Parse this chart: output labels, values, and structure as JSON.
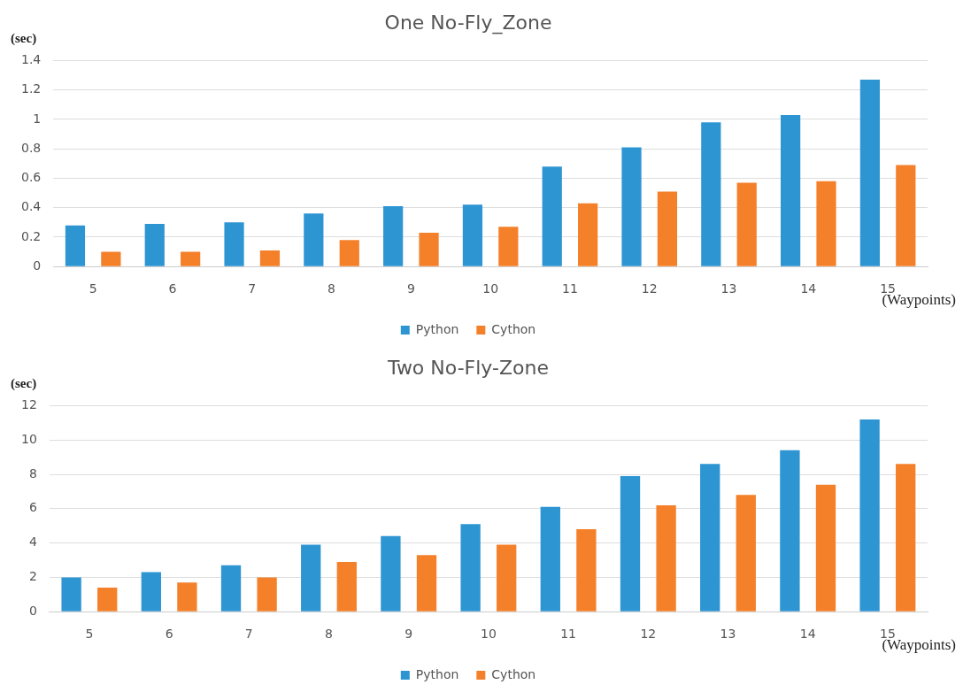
{
  "chart_data": [
    {
      "type": "bar",
      "title": "One No-Fly_Zone",
      "ylabel": "(sec)",
      "xlabel": "(Waypoints)",
      "categories": [
        "5",
        "6",
        "7",
        "8",
        "9",
        "10",
        "11",
        "12",
        "13",
        "14",
        "15"
      ],
      "series": [
        {
          "name": "Python",
          "color": "#2e95d3",
          "values": [
            0.28,
            0.29,
            0.3,
            0.36,
            0.41,
            0.42,
            0.68,
            0.81,
            0.98,
            1.03,
            1.27
          ]
        },
        {
          "name": "Cython",
          "color": "#f5802a",
          "values": [
            0.1,
            0.1,
            0.11,
            0.18,
            0.23,
            0.27,
            0.43,
            0.51,
            0.57,
            0.58,
            0.69
          ]
        }
      ],
      "ylim": [
        0,
        1.4
      ],
      "yticks": [
        0,
        0.2,
        0.4,
        0.6,
        0.8,
        1,
        1.2,
        1.4
      ],
      "grid": "y",
      "legend": "bottom"
    },
    {
      "type": "bar",
      "title": "Two No-Fly-Zone",
      "ylabel": "(sec)",
      "xlabel": "(Waypoints)",
      "categories": [
        "5",
        "6",
        "7",
        "8",
        "9",
        "10",
        "11",
        "12",
        "13",
        "14",
        "15"
      ],
      "series": [
        {
          "name": "Python",
          "color": "#2e95d3",
          "values": [
            2.0,
            2.3,
            2.7,
            3.9,
            4.4,
            5.1,
            6.1,
            7.9,
            8.6,
            9.4,
            11.2
          ]
        },
        {
          "name": "Cython",
          "color": "#f5802a",
          "values": [
            1.4,
            1.7,
            2.0,
            2.9,
            3.3,
            3.9,
            4.8,
            6.2,
            6.8,
            7.4,
            8.6
          ]
        }
      ],
      "ylim": [
        0,
        12
      ],
      "yticks": [
        0,
        2,
        4,
        6,
        8,
        10,
        12
      ],
      "grid": "y",
      "legend": "bottom"
    }
  ]
}
